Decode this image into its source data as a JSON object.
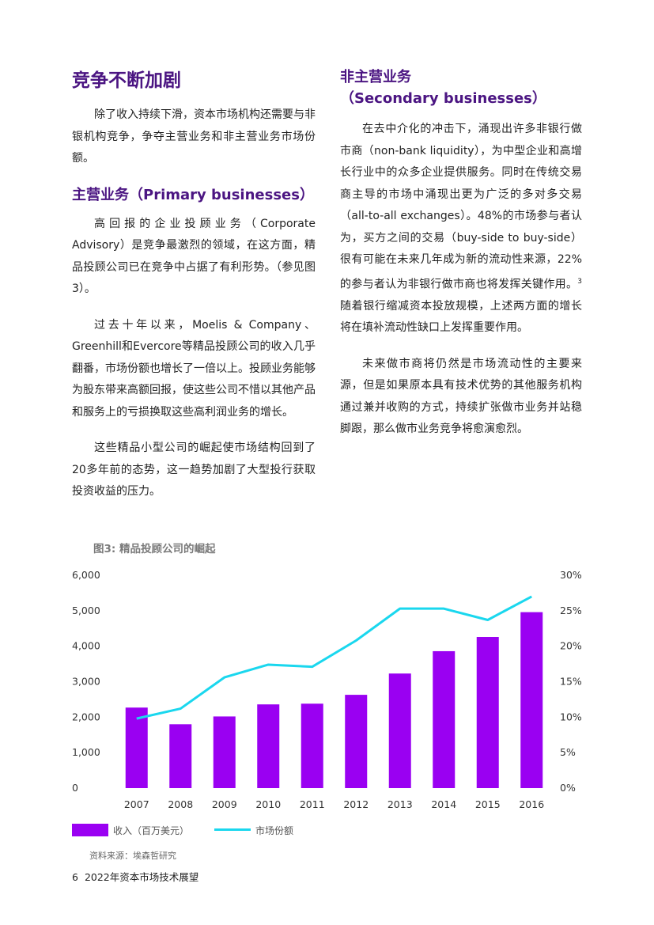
{
  "left": {
    "heading": "竞争不断加剧",
    "intro": "除了收入持续下滑，资本市场机构还需要与非银机构竞争，争夺主营业务和非主营业务市场份额。",
    "subheading": "主营业务（Primary businesses）",
    "paragraphs": [
      "高回报的企业投顾业务（Corporate Advisory）是竞争最激烈的领域，在这方面，精品投顾公司已在竞争中占据了有利形势。（参见图3）。",
      "过去十年以来，Moelis & Company、Greenhill和Evercore等精品投顾公司的收入几乎翻番，市场份额也增长了一倍以上。投顾业务能够为股东带来高额回报，使这些公司不惜以其他产品和服务上的亏损换取这些高利润业务的增长。",
      "这些精品小型公司的崛起使市场结构回到了20多年前的态势，这一趋势加剧了大型投行获取投资收益的压力。"
    ]
  },
  "right": {
    "heading_line1": "非主营业务",
    "heading_line2": "（Secondary businesses）",
    "para1_before_sup": "在去中介化的冲击下，涌现出许多非银行做市商（non-bank liquidity），为中型企业和高增长行业中的众多企业提供服务。同时在传统交易商主导的市场中涌现出更为广泛的多对多交易（all-to-all exchanges）。48%的市场参与者认为，买方之间的交易（buy-side to buy-side）很有可能在未来几年成为新的流动性来源，22%的参与者认为非银行做市商也将发挥关键作用。",
    "para1_sup": "3",
    "para1_after_sup": " 随着银行缩减资本投放规模，上述两方面的增长将在填补流动性缺口上发挥重要作用。",
    "para2": "未来做市商将仍然是市场流动性的主要来源，但是如果原本具有技术优势的其他服务机构通过兼并收购的方式，持续扩张做市业务并站稳脚跟，那么做市业务竞争将愈演愈烈。"
  },
  "figure": {
    "title": "图3: 精品投顾公司的崛起",
    "source": "资料来源：埃森哲研究"
  },
  "chart_data": {
    "type": "bar",
    "title": "图3: 精品投顾公司的崛起",
    "categories": [
      "2007",
      "2008",
      "2009",
      "2010",
      "2011",
      "2012",
      "2013",
      "2014",
      "2015",
      "2016"
    ],
    "series": [
      {
        "name": "收入（百万美元）",
        "type": "bar",
        "axis": "left",
        "color": "#9a00f2",
        "values": [
          2270,
          1800,
          2020,
          2360,
          2380,
          2630,
          3230,
          3860,
          4260,
          4960
        ]
      },
      {
        "name": "市场份额",
        "type": "line",
        "axis": "right",
        "color": "#1ad7ee",
        "values": [
          9.8,
          11.2,
          15.6,
          17.4,
          17.1,
          20.8,
          25.3,
          25.3,
          23.7,
          27.0
        ]
      }
    ],
    "y_left": {
      "lim": [
        0,
        6000
      ],
      "ticks": [
        "0",
        "1,000",
        "2,000",
        "3,000",
        "4,000",
        "5,000",
        "6,000"
      ]
    },
    "y_right": {
      "lim": [
        0,
        30
      ],
      "ticks": [
        "0%",
        "5%",
        "10%",
        "15%",
        "20%",
        "25%",
        "30%"
      ]
    },
    "grid": false,
    "legend_position": "bottom-left"
  },
  "footer": {
    "page_number": "6",
    "title": "2022年资本市场技术展望"
  }
}
